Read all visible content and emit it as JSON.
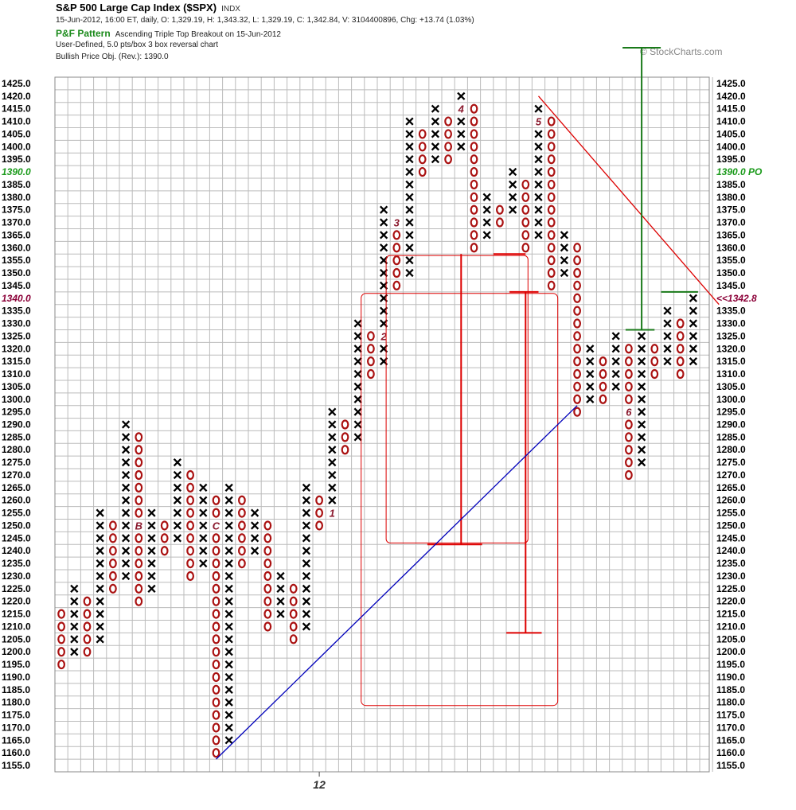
{
  "header": {
    "title": "S&P 500 Large Cap Index ($SPX)",
    "exchange": "INDX",
    "quote": "15-Jun-2012, 16:00 ET, daily, O: 1,329.19, H: 1,343.32, L: 1,329.19, C: 1,342.84, V: 3104400896, Chg: +13.74 (1.03%)",
    "pattern_label": "P&F Pattern",
    "pattern_text": "Ascending Triple Top Breakout on 15-Jun-2012",
    "method": "User-Defined, 5.0 pts/box 3 box reversal chart",
    "objective": "Bullish Price Obj. (Rev.): 1390.0",
    "copyright": "© StockCharts.com"
  },
  "colors": {
    "x_mark": "#000000",
    "o_mark": "#aa1111",
    "month_marker": "#8b1a2e",
    "grid": "#bbbbbb",
    "trendline_support": "#0000bb",
    "trendline_resistance": "#dd0000",
    "target": "#1a7a1a",
    "objective_label": "#1a9a1a",
    "last_price_label": "#8b0038"
  },
  "chart_data": {
    "type": "point_and_figure",
    "box_size": 5,
    "reversal": 3,
    "ylim": [
      1155,
      1425
    ],
    "y_tick_step": 5,
    "x_tick_labels": [
      {
        "col": 20,
        "label": "12"
      }
    ],
    "highlighted_labels": [
      {
        "price": 1390.0,
        "text": "1390.0",
        "right_text": "1390.0 PO",
        "color": "#1a9a1a"
      },
      {
        "price": 1340.0,
        "text": "1340.0",
        "right_text": "<<1342.8",
        "color": "#8b0038"
      }
    ],
    "columns": [
      {
        "type": "O",
        "high": 1215,
        "low": 1195
      },
      {
        "type": "X",
        "low": 1200,
        "high": 1225
      },
      {
        "type": "O",
        "high": 1220,
        "low": 1200
      },
      {
        "type": "X",
        "low": 1205,
        "high": 1255
      },
      {
        "type": "O",
        "high": 1250,
        "low": 1225
      },
      {
        "type": "X",
        "low": 1230,
        "high": 1290
      },
      {
        "type": "O",
        "high": 1285,
        "low": 1220,
        "markers": [
          {
            "price": 1250,
            "label": "B"
          }
        ]
      },
      {
        "type": "X",
        "low": 1225,
        "high": 1255
      },
      {
        "type": "O",
        "high": 1250,
        "low": 1240
      },
      {
        "type": "X",
        "low": 1245,
        "high": 1275
      },
      {
        "type": "O",
        "high": 1270,
        "low": 1230
      },
      {
        "type": "X",
        "low": 1235,
        "high": 1265
      },
      {
        "type": "O",
        "high": 1260,
        "low": 1160,
        "markers": [
          {
            "price": 1250,
            "label": "C"
          }
        ]
      },
      {
        "type": "X",
        "low": 1165,
        "high": 1265
      },
      {
        "type": "O",
        "high": 1260,
        "low": 1235
      },
      {
        "type": "X",
        "low": 1240,
        "high": 1255
      },
      {
        "type": "O",
        "high": 1250,
        "low": 1210
      },
      {
        "type": "X",
        "low": 1215,
        "high": 1230
      },
      {
        "type": "O",
        "high": 1225,
        "low": 1205
      },
      {
        "type": "X",
        "low": 1210,
        "high": 1265
      },
      {
        "type": "O",
        "high": 1260,
        "low": 1250
      },
      {
        "type": "X",
        "low": 1255,
        "high": 1295,
        "markers": [
          {
            "price": 1255,
            "label": "1"
          }
        ]
      },
      {
        "type": "O",
        "high": 1290,
        "low": 1280
      },
      {
        "type": "X",
        "low": 1285,
        "high": 1330
      },
      {
        "type": "O",
        "high": 1325,
        "low": 1310
      },
      {
        "type": "X",
        "low": 1315,
        "high": 1375,
        "markers": [
          {
            "price": 1325,
            "label": "2"
          }
        ]
      },
      {
        "type": "O",
        "high": 1370,
        "low": 1345,
        "markers": [
          {
            "price": 1370,
            "label": "3"
          }
        ]
      },
      {
        "type": "X",
        "low": 1350,
        "high": 1410
      },
      {
        "type": "O",
        "high": 1405,
        "low": 1390
      },
      {
        "type": "X",
        "low": 1395,
        "high": 1415
      },
      {
        "type": "O",
        "high": 1410,
        "low": 1395
      },
      {
        "type": "X",
        "low": 1400,
        "high": 1420,
        "markers": [
          {
            "price": 1415,
            "label": "4"
          }
        ]
      },
      {
        "type": "O",
        "high": 1415,
        "low": 1360
      },
      {
        "type": "X",
        "low": 1365,
        "high": 1380
      },
      {
        "type": "O",
        "high": 1375,
        "low": 1370
      },
      {
        "type": "X",
        "low": 1375,
        "high": 1390
      },
      {
        "type": "O",
        "high": 1385,
        "low": 1360
      },
      {
        "type": "X",
        "low": 1365,
        "high": 1415,
        "markers": [
          {
            "price": 1410,
            "label": "5"
          }
        ]
      },
      {
        "type": "O",
        "high": 1410,
        "low": 1345
      },
      {
        "type": "X",
        "low": 1350,
        "high": 1365
      },
      {
        "type": "O",
        "high": 1360,
        "low": 1295
      },
      {
        "type": "X",
        "low": 1300,
        "high": 1320
      },
      {
        "type": "O",
        "high": 1315,
        "low": 1300
      },
      {
        "type": "X",
        "low": 1305,
        "high": 1325
      },
      {
        "type": "O",
        "high": 1320,
        "low": 1270,
        "markers": [
          {
            "price": 1295,
            "label": "6"
          }
        ]
      },
      {
        "type": "X",
        "low": 1275,
        "high": 1325
      },
      {
        "type": "O",
        "high": 1320,
        "low": 1310
      },
      {
        "type": "X",
        "low": 1315,
        "high": 1335
      },
      {
        "type": "O",
        "high": 1330,
        "low": 1310
      },
      {
        "type": "X",
        "low": 1315,
        "high": 1340
      }
    ],
    "trendlines": [
      {
        "kind": "bullish_support",
        "from": {
          "col": 12,
          "price": 1157.5
        },
        "to": {
          "col": 40,
          "price": 1297.5
        }
      },
      {
        "kind": "bearish_resistance",
        "from": {
          "col": 37,
          "price": 1420
        },
        "to": {
          "col": 51,
          "price": 1337.5
        }
      }
    ],
    "price_target": {
      "col": 45,
      "base": 1327.5,
      "top": 1410,
      "label": "1390.0"
    }
  }
}
